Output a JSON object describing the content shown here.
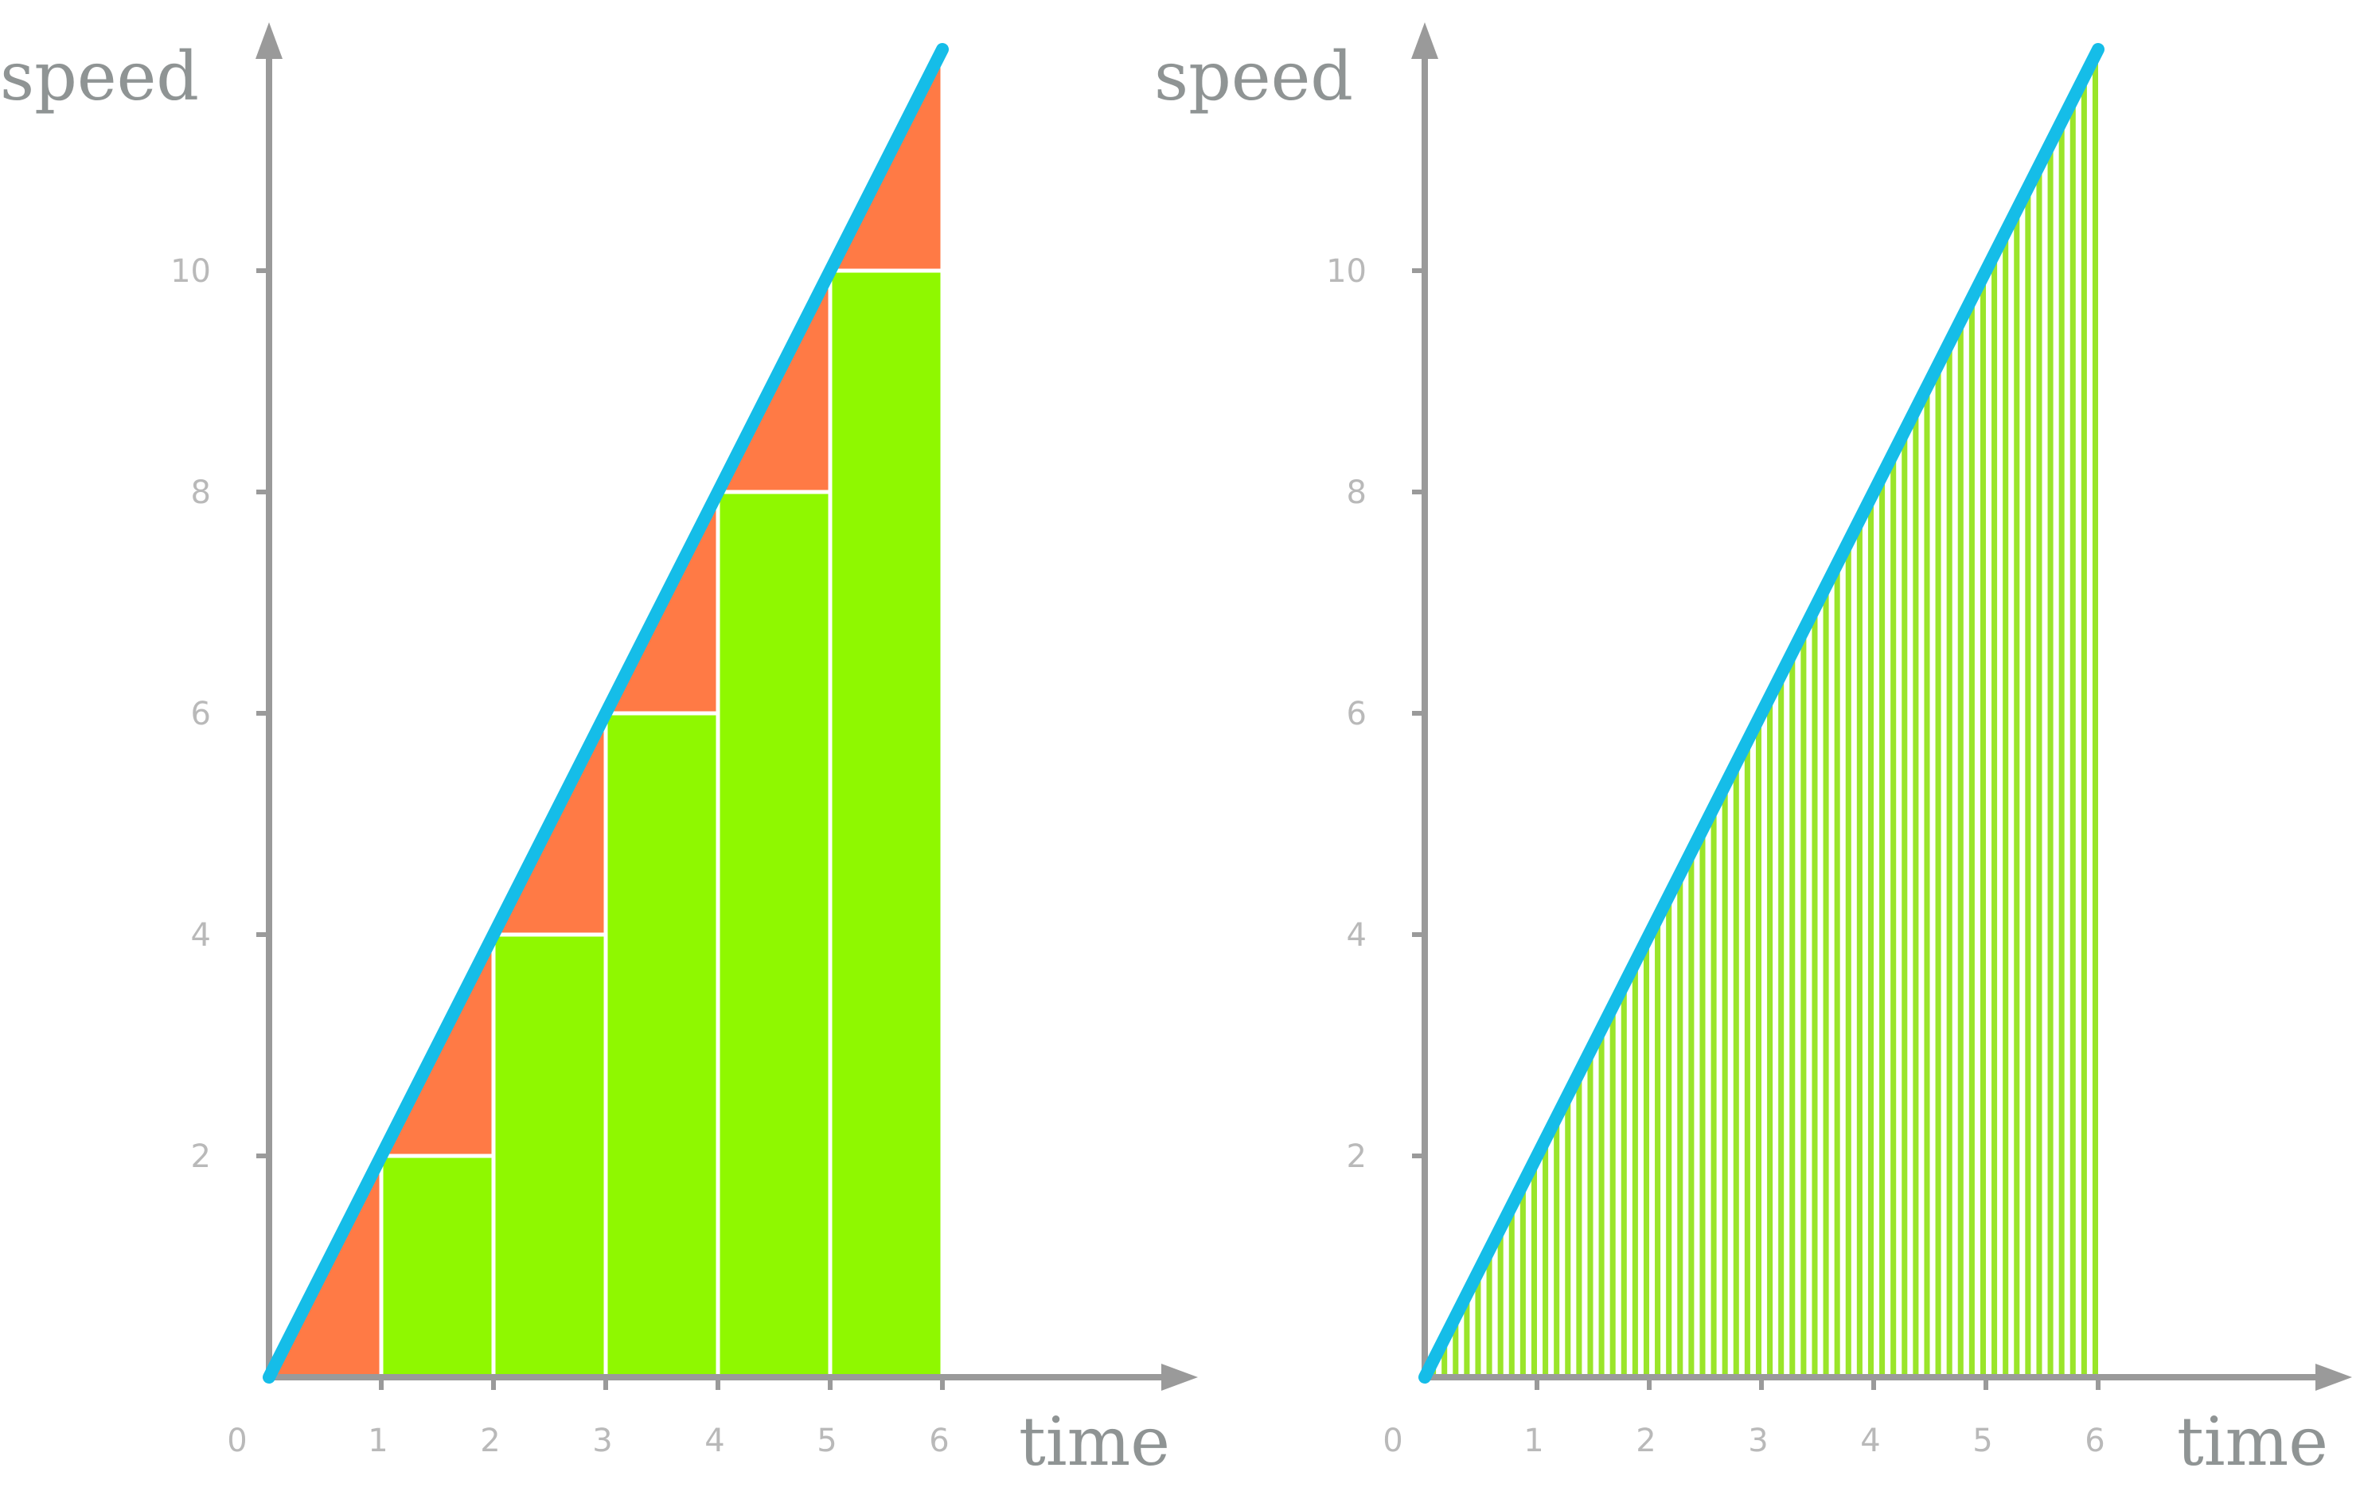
{
  "colors": {
    "speed_line": "#15bde8",
    "rectangles": "#8ff800",
    "error_triangles": "#ff7a45",
    "thin_bars": "#9ae52a",
    "axes": "#9a9a9a"
  },
  "chart_data": [
    {
      "type": "line",
      "xlabel": "time",
      "ylabel": "speed",
      "xlim": [
        0,
        8.2
      ],
      "ylim": [
        0,
        12
      ],
      "x_ticks": [
        "0",
        "1",
        "2",
        "3",
        "4",
        "5",
        "6"
      ],
      "y_ticks": [
        "2",
        "4",
        "6",
        "8",
        "10"
      ],
      "line": {
        "x": [
          0,
          6
        ],
        "y": [
          0,
          12
        ]
      },
      "rectangles": {
        "x_start": [
          1,
          2,
          3,
          4,
          5
        ],
        "width": 1,
        "heights": [
          2,
          4,
          6,
          8,
          10
        ]
      },
      "error_triangles": [
        {
          "x": [
            0,
            1
          ],
          "y_base": 0,
          "y_top": 2
        },
        {
          "x": [
            1,
            2
          ],
          "y_base": 2,
          "y_top": 4
        },
        {
          "x": [
            2,
            3
          ],
          "y_base": 4,
          "y_top": 6
        },
        {
          "x": [
            3,
            4
          ],
          "y_base": 6,
          "y_top": 8
        },
        {
          "x": [
            4,
            5
          ],
          "y_base": 8,
          "y_top": 10
        },
        {
          "x": [
            5,
            6
          ],
          "y_base": 10,
          "y_top": 12
        }
      ]
    },
    {
      "type": "bar",
      "xlabel": "time",
      "ylabel": "speed",
      "xlim": [
        0,
        8.2
      ],
      "ylim": [
        0,
        12
      ],
      "x_ticks": [
        "0",
        "1",
        "2",
        "3",
        "4",
        "5",
        "6"
      ],
      "y_ticks": [
        "2",
        "4",
        "6",
        "8",
        "10"
      ],
      "line": {
        "x": [
          0,
          6
        ],
        "y": [
          0,
          12
        ]
      },
      "bars": {
        "x_start": 0.1,
        "x_end": 6,
        "step": 0.1,
        "width": 0.05,
        "height_formula": "2*x"
      }
    }
  ]
}
